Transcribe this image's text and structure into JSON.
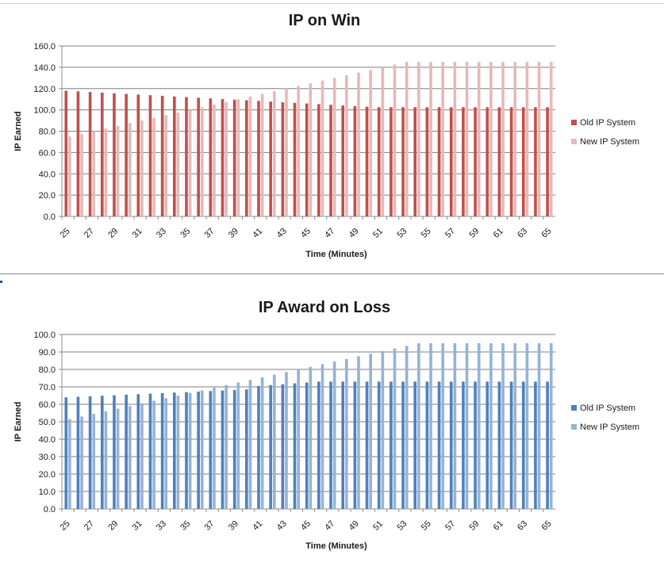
{
  "charts": [
    {
      "type": "bar",
      "title": "IP on Win",
      "xlabel": "Time  (Minutes)",
      "ylabel": "IP Earned",
      "ylim": [
        0,
        160
      ],
      "ytick_step": 20,
      "x_start": 25,
      "x_end": 65,
      "x_label_step": 2,
      "legend": [
        "Old IP System",
        "New IP System"
      ],
      "colors": {
        "old": "#c0504d",
        "new": "#e6b9b8"
      },
      "series": [
        {
          "name": "Old IP System",
          "values": [
            118,
            117.4,
            116.8,
            116.2,
            115.6,
            115,
            114.4,
            113.8,
            113.2,
            112.6,
            112,
            111.4,
            110.8,
            110.2,
            109.6,
            109,
            108.4,
            107.8,
            107.2,
            106.6,
            106,
            105.4,
            104.8,
            104.2,
            103.6,
            103,
            102.5,
            102.5,
            102.5,
            102.5,
            102.5,
            102.5,
            102.5,
            102.5,
            102.5,
            102.5,
            102.5,
            102.5,
            102.5,
            102.5,
            102.5
          ]
        },
        {
          "name": "New IP System",
          "values": [
            75,
            77.5,
            80,
            82.5,
            85,
            87.5,
            90,
            92.5,
            95,
            97.5,
            100,
            102.5,
            105,
            107.5,
            110,
            112.5,
            115,
            117.5,
            120,
            122.5,
            125,
            127.5,
            130,
            132.5,
            135,
            137.5,
            140,
            142.5,
            145,
            145,
            145,
            145,
            145,
            145,
            145,
            145,
            145,
            145,
            145,
            145,
            145
          ]
        }
      ]
    },
    {
      "type": "bar",
      "title": "IP Award on Loss",
      "xlabel": "Time (Minutes)",
      "ylabel": "IP Earned",
      "ylim": [
        0,
        100
      ],
      "ytick_step": 10,
      "x_start": 25,
      "x_end": 65,
      "x_label_step": 2,
      "legend": [
        "Old IP System",
        "New IP System"
      ],
      "colors": {
        "old": "#4f81bd",
        "new": "#95b3d7"
      },
      "series": [
        {
          "name": "Old IP System",
          "values": [
            64,
            64.3,
            64.6,
            64.9,
            65.2,
            65.5,
            65.8,
            66.1,
            66.4,
            66.7,
            67,
            67.3,
            67.6,
            67.9,
            68.2,
            68.5,
            70.5,
            71,
            71.5,
            72,
            72.5,
            73,
            73,
            73,
            73,
            73,
            73,
            73,
            73,
            73,
            73,
            73,
            73,
            73,
            73,
            73,
            73,
            73,
            73,
            73,
            73
          ]
        },
        {
          "name": "New IP System",
          "values": [
            51.5,
            53,
            54.5,
            56,
            57.5,
            59,
            60.5,
            62,
            63.5,
            65,
            66.5,
            68,
            69.5,
            71,
            72.5,
            74,
            75.5,
            77,
            78.5,
            80,
            81.5,
            83,
            84.5,
            86,
            87.5,
            89,
            90.5,
            92,
            93.5,
            95,
            95,
            95,
            95,
            95,
            95,
            95,
            95,
            95,
            95,
            95,
            95
          ]
        }
      ]
    }
  ],
  "chart_data": [
    {
      "type": "bar",
      "title": "IP on Win",
      "xlabel": "Time  (Minutes)",
      "ylabel": "IP Earned",
      "ylim": [
        0,
        160
      ]
    },
    {
      "type": "bar",
      "title": "IP Award on Loss",
      "xlabel": "Time (Minutes)",
      "ylabel": "IP Earned",
      "ylim": [
        0,
        100
      ]
    }
  ]
}
